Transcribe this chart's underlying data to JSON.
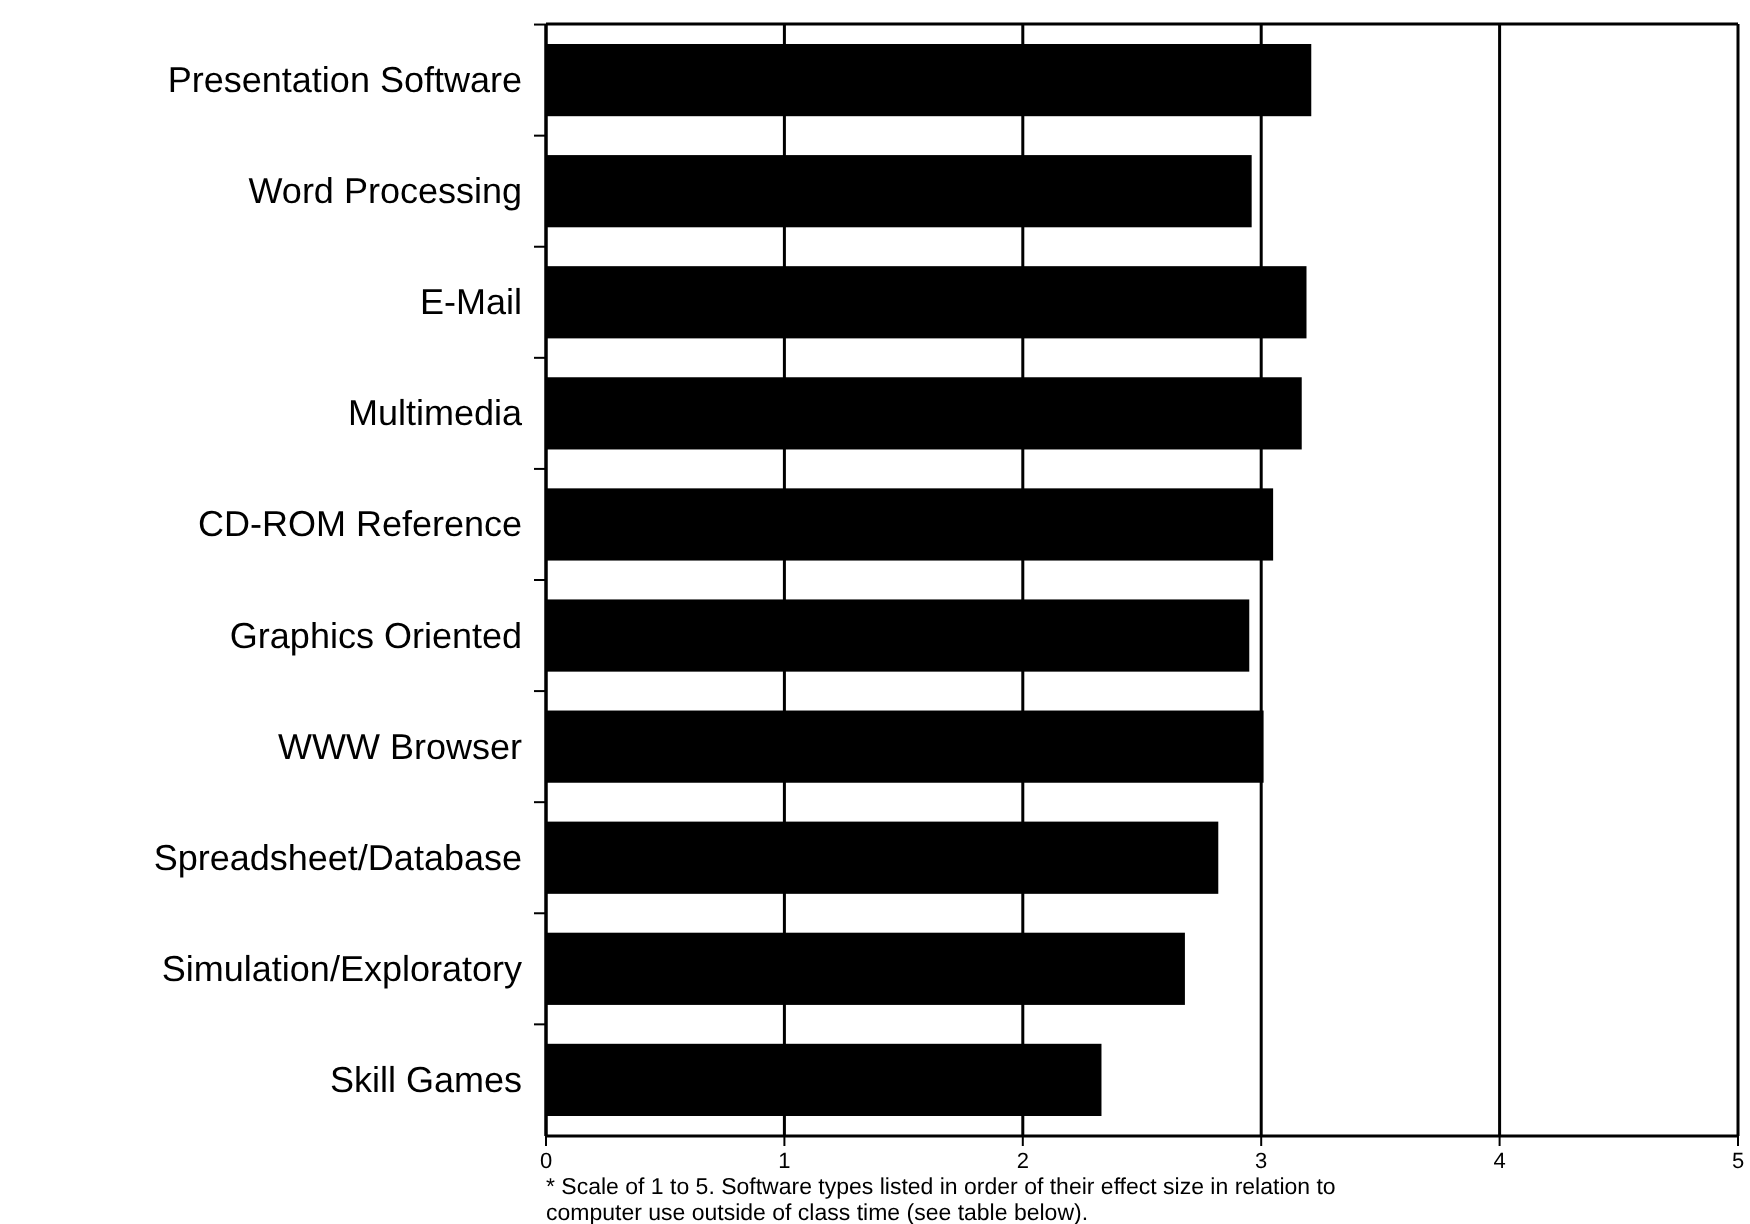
{
  "chart_data": {
    "type": "bar",
    "orientation": "horizontal",
    "categories": [
      "Presentation Software",
      "Word Processing",
      "E-Mail",
      "Multimedia",
      "CD-ROM Reference",
      "Graphics Oriented",
      "WWW Browser",
      "Spreadsheet/Database",
      "Simulation/Exploratory",
      "Skill Games"
    ],
    "values": [
      3.21,
      2.96,
      3.19,
      3.17,
      3.05,
      2.95,
      3.01,
      2.82,
      2.68,
      2.33
    ],
    "color": "#000000",
    "xlim": [
      0,
      5
    ],
    "xticks": [
      0,
      1,
      2,
      3,
      4,
      5
    ],
    "grid": "x",
    "annotations": [
      "* Scale of 1 to 5.  Software types listed in order of their effect size in relation to computer use outside of class time (see table below)."
    ]
  }
}
